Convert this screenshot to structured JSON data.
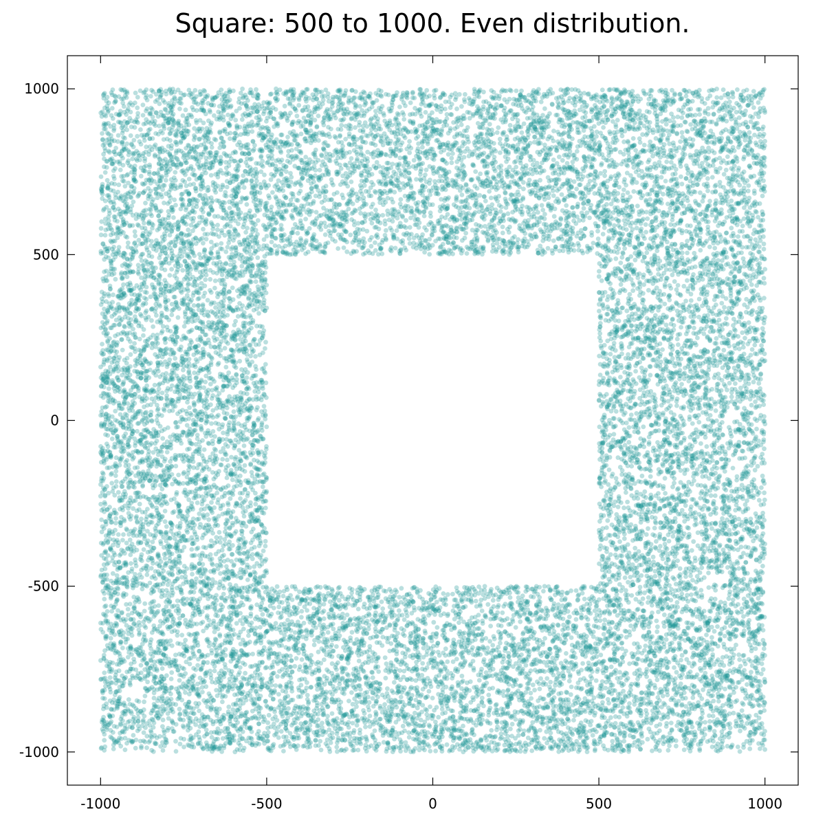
{
  "chart_data": {
    "type": "scatter",
    "title": "Square: 500 to 1000. Even distribution.",
    "xlabel": "",
    "ylabel": "",
    "xlim": [
      -1100,
      1100
    ],
    "ylim": [
      -1100,
      1100
    ],
    "xticks": [
      -1000,
      -500,
      0,
      500,
      1000
    ],
    "yticks": [
      1000,
      500,
      0,
      -500,
      -1000
    ],
    "xtick_labels": [
      "-1000",
      "-500",
      "0",
      "500",
      "1000"
    ],
    "ytick_labels": [
      "1000",
      "500",
      "0",
      "-500",
      "-1000"
    ],
    "grid": false,
    "legend": "none",
    "series": [
      {
        "color": "#1a9696",
        "opacity": 0.3,
        "region": "points uniformly distributed in the square -1000..1000 excluding the square -500..500",
        "outer_half_side": 1000,
        "inner_half_side": 500,
        "approx_point_count": 20000,
        "values": [
          [
            -980,
            975
          ],
          [
            -702,
            880
          ],
          [
            -345,
            940
          ],
          [
            -10,
            812
          ],
          [
            256,
            905
          ],
          [
            611,
            970
          ],
          [
            845,
            781
          ],
          [
            993,
            620
          ],
          [
            -920,
            640
          ],
          [
            -610,
            555
          ],
          [
            -120,
            560
          ],
          [
            402,
            610
          ],
          [
            705,
            520
          ],
          [
            930,
            410
          ],
          [
            -880,
            320
          ],
          [
            -640,
            140
          ],
          [
            -530,
            -60
          ],
          [
            -760,
            -310
          ],
          [
            -950,
            -480
          ],
          [
            560,
            300
          ],
          [
            780,
            90
          ],
          [
            970,
            -150
          ],
          [
            650,
            -420
          ],
          [
            890,
            -360
          ],
          [
            -900,
            -720
          ],
          [
            -560,
            -880
          ],
          [
            -220,
            -610
          ],
          [
            80,
            -930
          ],
          [
            340,
            -700
          ],
          [
            590,
            -980
          ],
          [
            820,
            -620
          ],
          [
            985,
            -990
          ]
        ]
      }
    ]
  }
}
